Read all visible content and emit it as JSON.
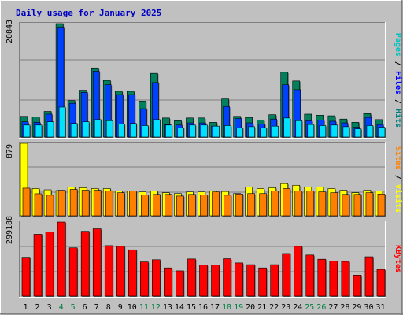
{
  "chart_data": [
    {
      "type": "bar",
      "title": "Daily usage for January 2025",
      "categories": [
        "1",
        "2",
        "3",
        "4",
        "5",
        "6",
        "7",
        "8",
        "9",
        "10",
        "11",
        "12",
        "13",
        "14",
        "15",
        "16",
        "17",
        "18",
        "19",
        "20",
        "21",
        "22",
        "23",
        "24",
        "25",
        "26",
        "27",
        "28",
        "29",
        "30",
        "31"
      ],
      "weekend_days": [
        "4",
        "5",
        "11",
        "12",
        "18",
        "19",
        "25",
        "26"
      ],
      "ymax": 20843,
      "ymax_label": "20843",
      "grid": true,
      "y_label_parts": [
        {
          "text": "Pages",
          "color": "#00c0c0"
        },
        {
          "text": " / ",
          "color": "#000000"
        },
        {
          "text": "Files",
          "color": "#0000ff"
        },
        {
          "text": " / ",
          "color": "#000000"
        },
        {
          "text": "Hits",
          "color": "#008080"
        }
      ],
      "series": [
        {
          "name": "Hits",
          "color": "#00805c",
          "values": [
            3800,
            3700,
            4700,
            20843,
            6700,
            8600,
            12700,
            10400,
            8400,
            8400,
            6600,
            11700,
            3500,
            3000,
            3500,
            3500,
            2700,
            7000,
            3800,
            3600,
            3100,
            4100,
            11900,
            10300,
            4200,
            4000,
            3900,
            3300,
            2700,
            4300,
            3200
          ]
        },
        {
          "name": "Files",
          "color": "#0040ff",
          "values": [
            2800,
            2700,
            4200,
            20200,
            6200,
            8200,
            12100,
            9600,
            7800,
            7800,
            5200,
            10000,
            2300,
            2200,
            2600,
            2600,
            2000,
            5600,
            3400,
            2600,
            2400,
            3300,
            9600,
            8700,
            3000,
            3100,
            2900,
            2600,
            1800,
            3600,
            2300
          ]
        },
        {
          "name": "Pages",
          "color": "#00e0ff",
          "values": [
            2200,
            2200,
            2800,
            5500,
            2500,
            2800,
            3200,
            3000,
            2400,
            2500,
            2100,
            3200,
            2200,
            1700,
            2200,
            2200,
            2000,
            2100,
            1700,
            1900,
            1700,
            2000,
            3500,
            3000,
            2300,
            2100,
            2200,
            1900,
            1500,
            2100,
            1800
          ]
        }
      ]
    },
    {
      "type": "bar",
      "categories": [
        "1",
        "2",
        "3",
        "4",
        "5",
        "6",
        "7",
        "8",
        "9",
        "10",
        "11",
        "12",
        "13",
        "14",
        "15",
        "16",
        "17",
        "18",
        "19",
        "20",
        "21",
        "22",
        "23",
        "24",
        "25",
        "26",
        "27",
        "28",
        "29",
        "30",
        "31"
      ],
      "ymax": 879,
      "ymax_label": "879",
      "grid": true,
      "y_label_parts": [
        {
          "text": "Sites",
          "color": "#ff8000"
        },
        {
          "text": " / ",
          "color": "#000000"
        },
        {
          "text": "Visits",
          "color": "#ffff00"
        }
      ],
      "series": [
        {
          "name": "Visits",
          "color": "#ffff00",
          "values": [
            879,
            330,
            315,
            306,
            350,
            340,
            330,
            330,
            300,
            300,
            290,
            300,
            280,
            270,
            290,
            290,
            300,
            295,
            270,
            350,
            330,
            340,
            390,
            370,
            350,
            350,
            330,
            310,
            280,
            310,
            300
          ]
        },
        {
          "name": "Sites",
          "color": "#ff8000",
          "values": [
            335,
            268,
            250,
            310,
            320,
            310,
            310,
            300,
            280,
            300,
            255,
            260,
            260,
            240,
            260,
            255,
            290,
            250,
            265,
            270,
            270,
            300,
            330,
            300,
            300,
            290,
            280,
            260,
            260,
            280,
            265
          ]
        }
      ]
    },
    {
      "type": "bar",
      "categories": [
        "1",
        "2",
        "3",
        "4",
        "5",
        "6",
        "7",
        "8",
        "9",
        "10",
        "11",
        "12",
        "13",
        "14",
        "15",
        "16",
        "17",
        "18",
        "19",
        "20",
        "21",
        "22",
        "23",
        "24",
        "25",
        "26",
        "27",
        "28",
        "29",
        "30",
        "31"
      ],
      "ymax": 299188,
      "ymax_label": "299188",
      "grid": true,
      "y_label_parts": [
        {
          "text": "KBytes",
          "color": "#ff0000"
        }
      ],
      "series": [
        {
          "name": "KBytes",
          "color": "#ff0000",
          "values": [
            157000,
            250000,
            259000,
            299188,
            195000,
            262000,
            272000,
            204000,
            201000,
            187000,
            138000,
            147000,
            114000,
            102000,
            150000,
            125000,
            126000,
            151000,
            134000,
            127000,
            114000,
            127000,
            172000,
            201000,
            166000,
            149000,
            141000,
            140000,
            85000,
            159000,
            108000
          ]
        }
      ]
    }
  ]
}
